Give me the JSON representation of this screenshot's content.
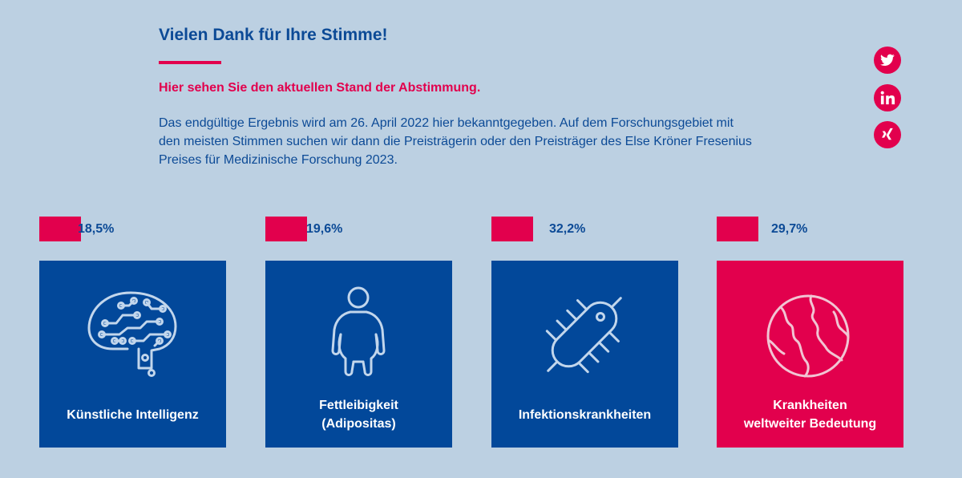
{
  "header": {
    "title": "Vielen Dank für Ihre Stimme!",
    "subtitle": "Hier sehen Sie den aktuellen Stand der Abstimmung.",
    "body": "Das endgültige Ergebnis wird am 26. April 2022 hier bekanntgegeben. Auf dem Forschungsgebiet mit den meisten Stimmen suchen wir dann die Preisträgerin oder den Preisträger des Else Kröner Fresenius Preises für Medizinische Forschung 2023."
  },
  "social": [
    {
      "name": "twitter",
      "icon": "twitter-icon"
    },
    {
      "name": "linkedin",
      "icon": "linkedin-icon"
    },
    {
      "name": "xing",
      "icon": "xing-icon"
    }
  ],
  "results": [
    {
      "percent_label": "18,5%",
      "value": 18.5,
      "label": "Künstliche Intelligenz",
      "icon": "brain-circuit-icon",
      "selected": false
    },
    {
      "percent_label": "19,6%",
      "value": 19.6,
      "label": "Fettleibigkeit\n(Adipositas)",
      "icon": "person-obesity-icon",
      "selected": false
    },
    {
      "percent_label": "32,2%",
      "value": 32.2,
      "label": "Infektionskrankheiten",
      "icon": "bacterium-icon",
      "selected": false
    },
    {
      "percent_label": "29,7%",
      "value": 29.7,
      "label": "Krankheiten\nweltweiter Bedeutung",
      "icon": "globe-icon",
      "selected": true
    }
  ],
  "colors": {
    "background": "#bcd0e2",
    "primary_blue": "#02489a",
    "accent_pink": "#e2004d",
    "text_blue": "#0c4a96"
  }
}
